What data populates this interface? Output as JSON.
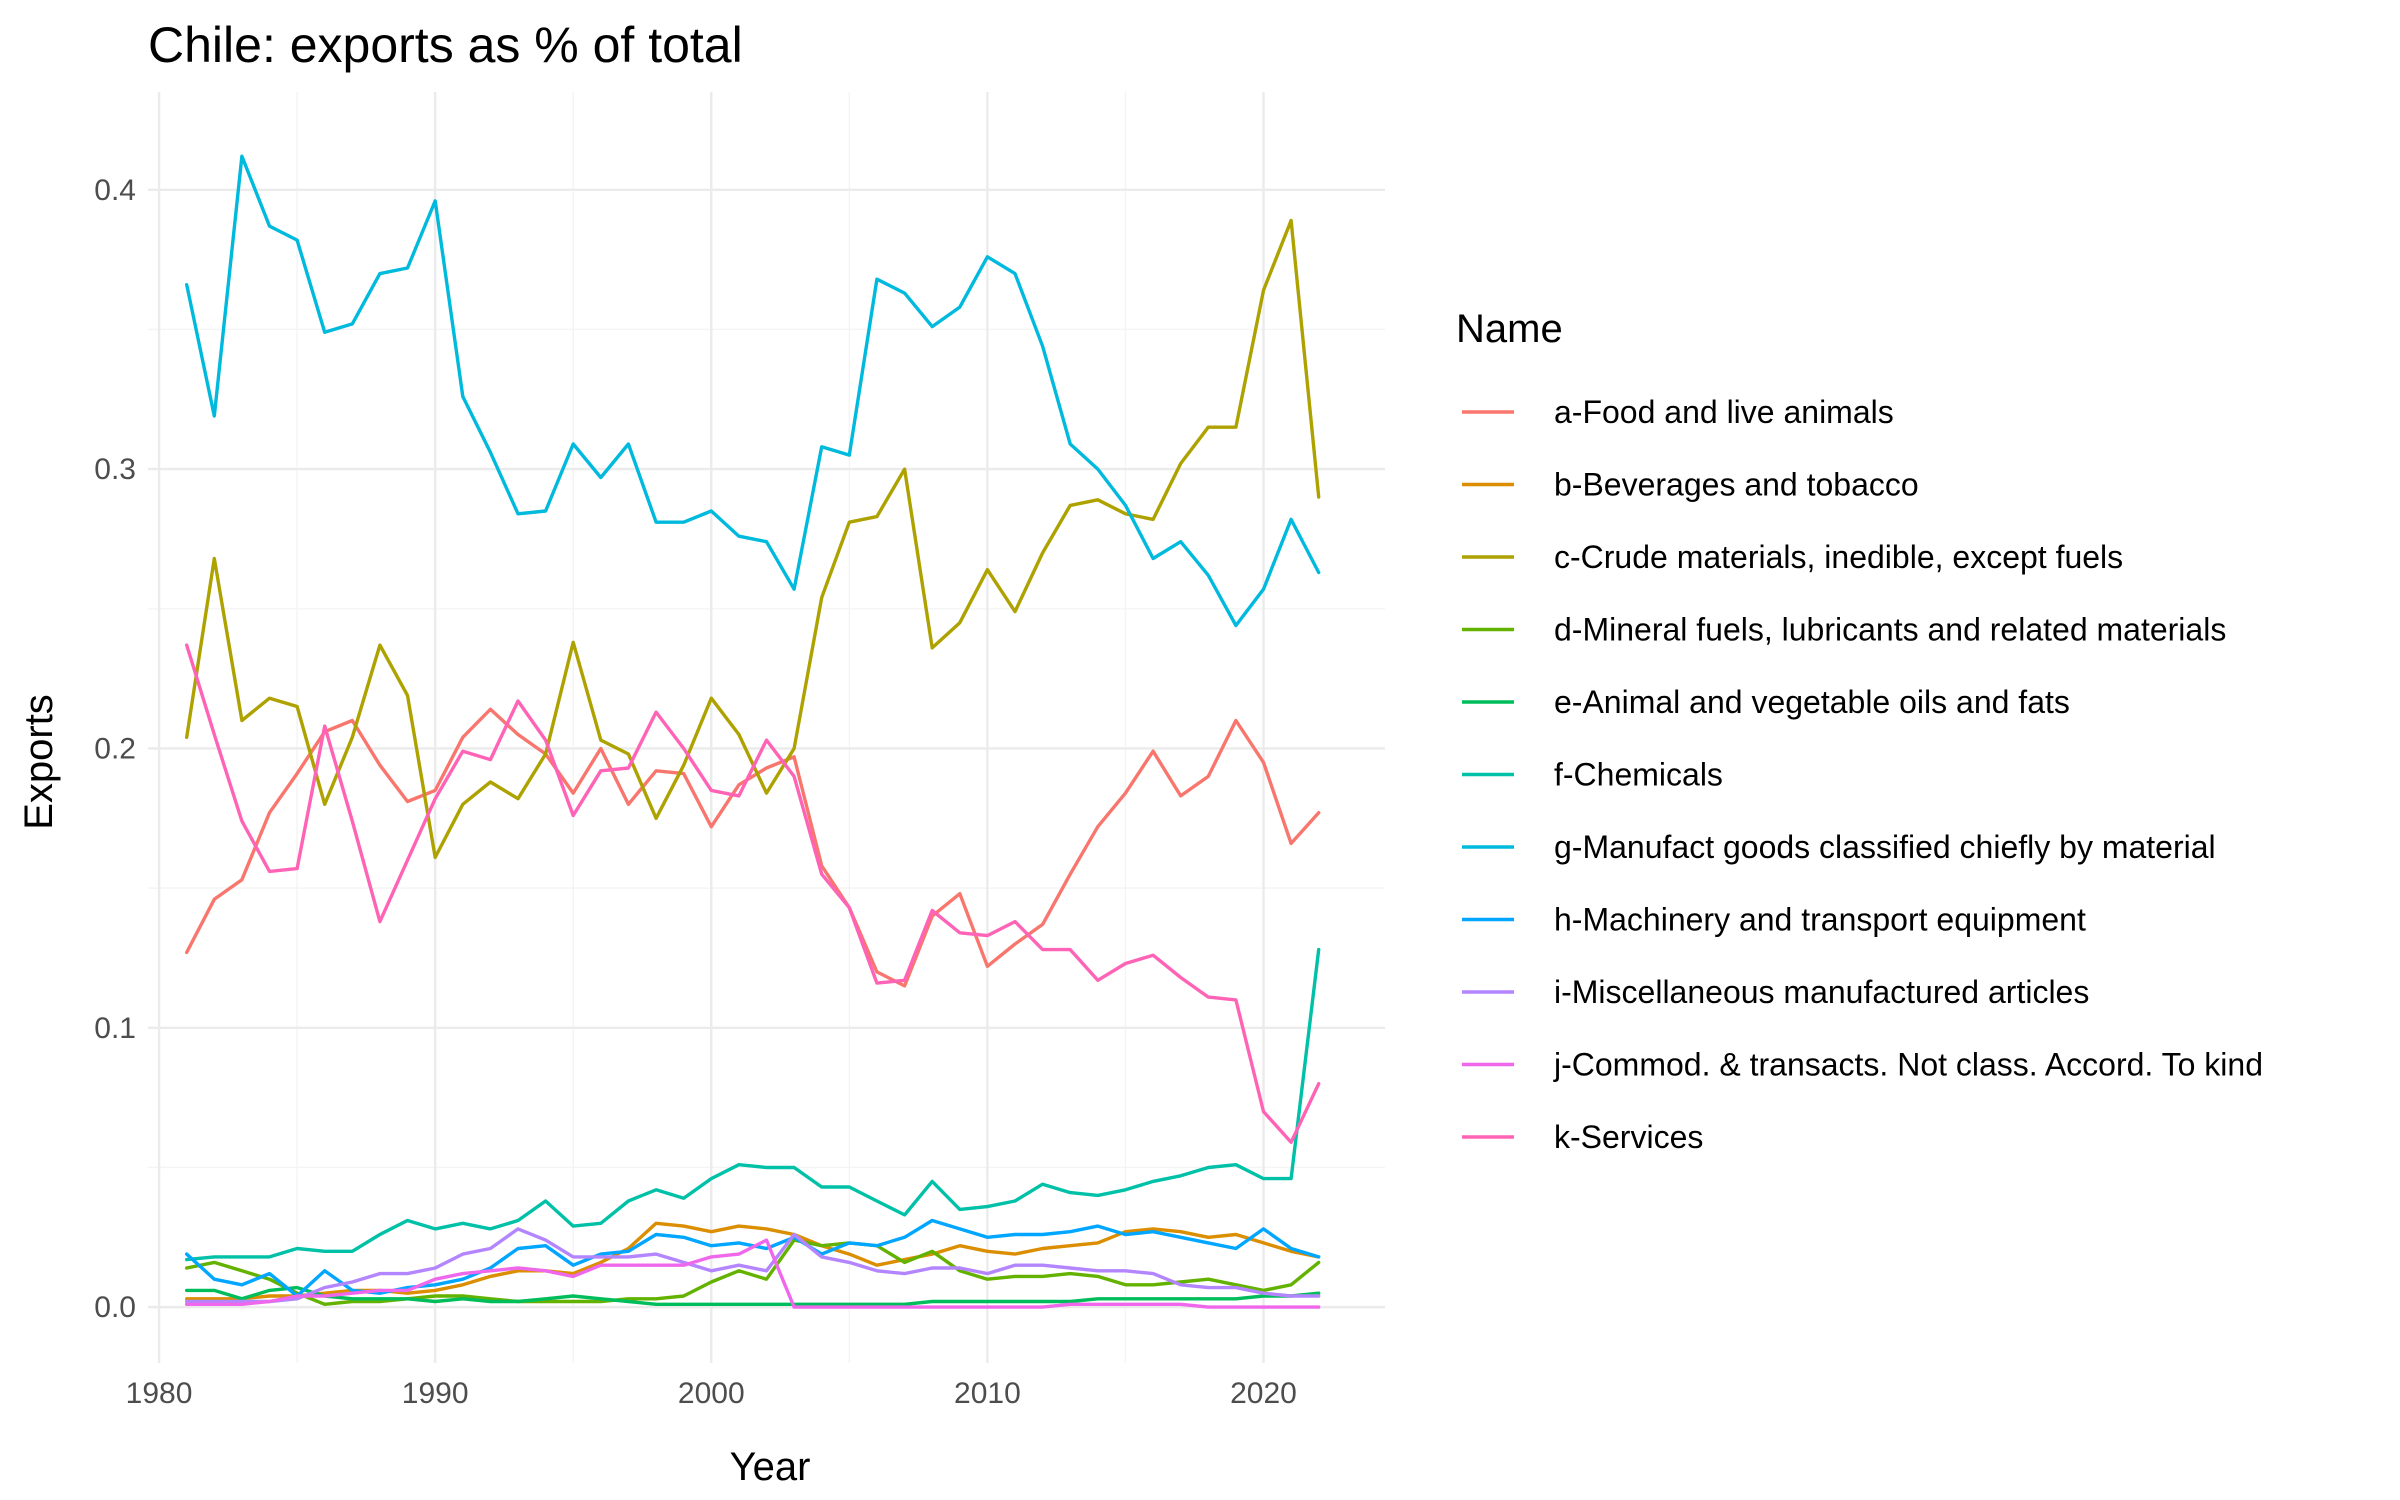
{
  "chart_data": {
    "type": "line",
    "title": "Chile: exports as % of total",
    "xlabel": "Year",
    "ylabel": "Exports",
    "legend_title": "Name",
    "legend_position": "right",
    "grid": true,
    "xlim": [
      1979.6,
      2024.4
    ],
    "ylim": [
      -0.02,
      0.435
    ],
    "x_ticks": [
      1980,
      1990,
      2000,
      2010,
      2020
    ],
    "y_ticks": [
      0.0,
      0.1,
      0.2,
      0.3,
      0.4
    ],
    "y_tick_labels": [
      "0.0",
      "0.1",
      "0.2",
      "0.3",
      "0.4"
    ],
    "x": [
      1981,
      1982,
      1983,
      1984,
      1985,
      1986,
      1987,
      1988,
      1989,
      1990,
      1991,
      1992,
      1993,
      1994,
      1995,
      1996,
      1997,
      1998,
      1999,
      2000,
      2001,
      2002,
      2003,
      2004,
      2005,
      2006,
      2007,
      2008,
      2009,
      2010,
      2011,
      2012,
      2013,
      2014,
      2015,
      2016,
      2017,
      2018,
      2019,
      2020,
      2021,
      2022
    ],
    "series": [
      {
        "name": "a-Food and live animals",
        "color": "#F8766D",
        "values": [
          0.127,
          0.146,
          0.153,
          0.177,
          0.191,
          0.206,
          0.21,
          0.194,
          0.181,
          0.185,
          0.204,
          0.214,
          0.205,
          0.198,
          0.184,
          0.2,
          0.18,
          0.192,
          0.191,
          0.172,
          0.187,
          0.193,
          0.197,
          0.158,
          0.143,
          0.12,
          0.115,
          0.14,
          0.148,
          0.122,
          0.13,
          0.137,
          0.155,
          0.172,
          0.184,
          0.199,
          0.183,
          0.19,
          0.21,
          0.195,
          0.166,
          0.177
        ]
      },
      {
        "name": "b-Beverages and tobacco",
        "color": "#DB8E00",
        "values": [
          0.003,
          0.003,
          0.003,
          0.004,
          0.004,
          0.005,
          0.006,
          0.006,
          0.005,
          0.006,
          0.008,
          0.011,
          0.013,
          0.013,
          0.012,
          0.016,
          0.021,
          0.03,
          0.029,
          0.027,
          0.029,
          0.028,
          0.026,
          0.022,
          0.019,
          0.015,
          0.017,
          0.019,
          0.022,
          0.02,
          0.019,
          0.021,
          0.022,
          0.023,
          0.027,
          0.028,
          0.027,
          0.025,
          0.026,
          0.023,
          0.02,
          0.018
        ]
      },
      {
        "name": "c-Crude materials, inedible, except fuels",
        "color": "#AEA200",
        "values": [
          0.204,
          0.268,
          0.21,
          0.218,
          0.215,
          0.18,
          0.204,
          0.237,
          0.219,
          0.161,
          0.18,
          0.188,
          0.182,
          0.198,
          0.238,
          0.203,
          0.198,
          0.175,
          0.194,
          0.218,
          0.205,
          0.184,
          0.2,
          0.254,
          0.281,
          0.283,
          0.3,
          0.236,
          0.245,
          0.264,
          0.249,
          0.27,
          0.287,
          0.289,
          0.284,
          0.282,
          0.302,
          0.315,
          0.315,
          0.364,
          0.389,
          0.29
        ]
      },
      {
        "name": "d-Mineral fuels, lubricants and related materials",
        "color": "#64B200",
        "values": [
          0.014,
          0.016,
          0.013,
          0.01,
          0.005,
          0.001,
          0.002,
          0.002,
          0.003,
          0.004,
          0.004,
          0.003,
          0.002,
          0.002,
          0.002,
          0.002,
          0.003,
          0.003,
          0.004,
          0.009,
          0.013,
          0.01,
          0.024,
          0.022,
          0.023,
          0.022,
          0.016,
          0.02,
          0.013,
          0.01,
          0.011,
          0.011,
          0.012,
          0.011,
          0.008,
          0.008,
          0.009,
          0.01,
          0.008,
          0.006,
          0.008,
          0.016
        ]
      },
      {
        "name": "e-Animal and vegetable oils and fats",
        "color": "#00BD5C",
        "values": [
          0.006,
          0.006,
          0.003,
          0.006,
          0.007,
          0.004,
          0.003,
          0.003,
          0.003,
          0.002,
          0.003,
          0.002,
          0.002,
          0.003,
          0.004,
          0.003,
          0.002,
          0.001,
          0.001,
          0.001,
          0.001,
          0.001,
          0.001,
          0.001,
          0.001,
          0.001,
          0.001,
          0.002,
          0.002,
          0.002,
          0.002,
          0.002,
          0.002,
          0.003,
          0.003,
          0.003,
          0.003,
          0.003,
          0.003,
          0.004,
          0.004,
          0.005
        ]
      },
      {
        "name": "f-Chemicals",
        "color": "#00C1A7",
        "values": [
          0.017,
          0.018,
          0.018,
          0.018,
          0.021,
          0.02,
          0.02,
          0.026,
          0.031,
          0.028,
          0.03,
          0.028,
          0.031,
          0.038,
          0.029,
          0.03,
          0.038,
          0.042,
          0.039,
          0.046,
          0.051,
          0.05,
          0.05,
          0.043,
          0.043,
          0.038,
          0.033,
          0.045,
          0.035,
          0.036,
          0.038,
          0.044,
          0.041,
          0.04,
          0.042,
          0.045,
          0.047,
          0.05,
          0.051,
          0.046,
          0.046,
          0.128
        ]
      },
      {
        "name": "g-Manufact goods classified chiefly by material",
        "color": "#00BADE",
        "values": [
          0.366,
          0.319,
          0.412,
          0.387,
          0.382,
          0.349,
          0.352,
          0.37,
          0.372,
          0.396,
          0.326,
          0.306,
          0.284,
          0.285,
          0.309,
          0.297,
          0.309,
          0.281,
          0.281,
          0.285,
          0.276,
          0.274,
          0.257,
          0.308,
          0.305,
          0.368,
          0.363,
          0.351,
          0.358,
          0.376,
          0.37,
          0.344,
          0.309,
          0.3,
          0.287,
          0.268,
          0.274,
          0.262,
          0.244,
          0.257,
          0.282,
          0.263
        ]
      },
      {
        "name": "h-Machinery and transport equipment",
        "color": "#00A6FF",
        "values": [
          0.019,
          0.01,
          0.008,
          0.012,
          0.004,
          0.013,
          0.006,
          0.005,
          0.007,
          0.008,
          0.01,
          0.014,
          0.021,
          0.022,
          0.015,
          0.019,
          0.02,
          0.026,
          0.025,
          0.022,
          0.023,
          0.021,
          0.025,
          0.019,
          0.023,
          0.022,
          0.025,
          0.031,
          0.028,
          0.025,
          0.026,
          0.026,
          0.027,
          0.029,
          0.026,
          0.027,
          0.025,
          0.023,
          0.021,
          0.028,
          0.021,
          0.018
        ]
      },
      {
        "name": "i-Miscellaneous manufactured articles",
        "color": "#B385FF",
        "values": [
          0.002,
          0.002,
          0.002,
          0.002,
          0.003,
          0.007,
          0.009,
          0.012,
          0.012,
          0.014,
          0.019,
          0.021,
          0.028,
          0.024,
          0.018,
          0.018,
          0.018,
          0.019,
          0.016,
          0.013,
          0.015,
          0.013,
          0.026,
          0.018,
          0.016,
          0.013,
          0.012,
          0.014,
          0.014,
          0.012,
          0.015,
          0.015,
          0.014,
          0.013,
          0.013,
          0.012,
          0.008,
          0.007,
          0.007,
          0.005,
          0.004,
          0.004
        ]
      },
      {
        "name": "j-Commod. & transacts. Not class. Accord. To kind",
        "color": "#EF67EB",
        "values": [
          0.001,
          0.001,
          0.001,
          0.002,
          0.004,
          0.004,
          0.005,
          0.006,
          0.006,
          0.01,
          0.012,
          0.013,
          0.014,
          0.013,
          0.011,
          0.015,
          0.015,
          0.015,
          0.015,
          0.018,
          0.019,
          0.024,
          0.0,
          0.0,
          0.0,
          0.0,
          0.0,
          0.0,
          0.0,
          0.0,
          0.0,
          0.0,
          0.001,
          0.001,
          0.001,
          0.001,
          0.001,
          0.0,
          0.0,
          0.0,
          0.0,
          0.0
        ]
      },
      {
        "name": "k-Services",
        "color": "#FF63B6",
        "values": [
          0.237,
          0.205,
          0.174,
          0.156,
          0.157,
          0.208,
          0.174,
          0.138,
          0.16,
          0.182,
          0.199,
          0.196,
          0.217,
          0.203,
          0.176,
          0.192,
          0.193,
          0.213,
          0.2,
          0.185,
          0.183,
          0.203,
          0.19,
          0.155,
          0.143,
          0.116,
          0.117,
          0.142,
          0.134,
          0.133,
          0.138,
          0.128,
          0.128,
          0.117,
          0.123,
          0.126,
          0.118,
          0.111,
          0.11,
          0.07,
          0.059,
          0.08
        ]
      }
    ]
  }
}
